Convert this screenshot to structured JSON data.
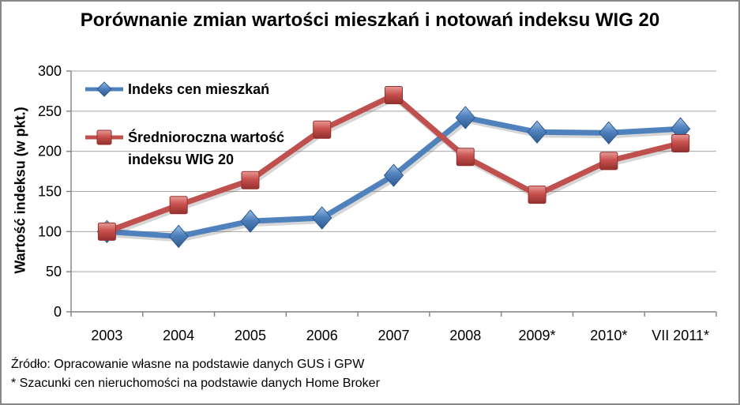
{
  "title": "Porównanie zmian wartości mieszkań i notowań indeksu WIG 20",
  "footer": {
    "source_line": "Źródło: Opracowanie własne na podstawie danych GUS i GPW",
    "note_line": "* Szacunki cen nieruchomości na podstawie danych Home Broker"
  },
  "chart_data": {
    "type": "line",
    "title": "Porównanie zmian wartości mieszkań i notowań indeksu WIG 20",
    "xlabel": "",
    "ylabel": "Wartość indeksu (w pkt.)",
    "ylim": [
      0,
      300
    ],
    "ytick_step": 50,
    "yticks": [
      0,
      50,
      100,
      150,
      200,
      250,
      300
    ],
    "grid": true,
    "legend_position": "top-left-inside",
    "categories": [
      "2003",
      "2004",
      "2005",
      "2006",
      "2007",
      "2008",
      "2009*",
      "2010*",
      "VII 2011*"
    ],
    "series": [
      {
        "name": "Indeks cen mieszkań",
        "marker": "diamond",
        "color": "#4F81BD",
        "values": [
          100,
          94,
          113,
          117,
          170,
          242,
          224,
          223,
          228
        ]
      },
      {
        "name": "Średnioroczna wartość indeksu WIG 20",
        "marker": "square",
        "color": "#C0504D",
        "values": [
          100,
          133,
          164,
          227,
          270,
          193,
          146,
          188,
          210
        ]
      }
    ],
    "colors": {
      "blue_line": "#4F81BD",
      "blue_marker_light": "#9CC0E4",
      "blue_marker_dark": "#2F5A8F",
      "red_line": "#C0504D",
      "red_marker_light": "#E89B98",
      "red_marker_dark": "#92302E",
      "gridline": "#A6A6A6",
      "axis": "#808080",
      "outer_border": "#878787"
    }
  }
}
